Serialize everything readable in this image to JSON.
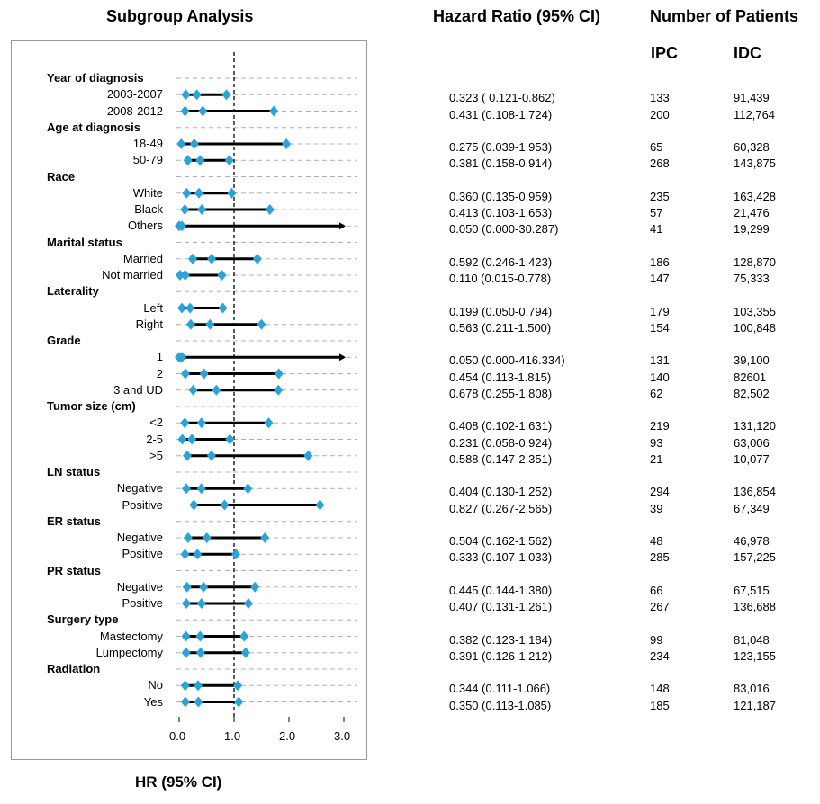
{
  "headers": {
    "subgroup": "Subgroup Analysis",
    "hazard_ratio": "Hazard Ratio (95% CI)",
    "number_of_patients": "Number of Patients",
    "ipc": "IPC",
    "idc": "IDC"
  },
  "chart_data": {
    "type": "forest",
    "xlabel": "HR (95% CI)",
    "xlim": [
      0,
      3
    ],
    "xticks": [
      "0.0",
      "1.0",
      "2.0",
      "3.0"
    ],
    "reference_line": 1.0,
    "grid": "dashed horizontal",
    "rows": [
      {
        "kind": "section",
        "label": "Year of diagnosis"
      },
      {
        "kind": "item",
        "label": "2003-2007",
        "hr": 0.323,
        "lo": 0.121,
        "hi": 0.862,
        "hr_text": "0.323 ( 0.121-0.862)",
        "ipc": "133",
        "idc": "91,439"
      },
      {
        "kind": "item",
        "label": "2008-2012",
        "hr": 0.431,
        "lo": 0.108,
        "hi": 1.724,
        "hr_text": "0.431 (0.108-1.724)",
        "ipc": "200",
        "idc": "112,764"
      },
      {
        "kind": "section",
        "label": "Age at diagnosis"
      },
      {
        "kind": "item",
        "label": "18-49",
        "hr": 0.275,
        "lo": 0.039,
        "hi": 1.953,
        "hr_text": "0.275 (0.039-1.953)",
        "ipc": "65",
        "idc": "60,328"
      },
      {
        "kind": "item",
        "label": "50-79",
        "hr": 0.381,
        "lo": 0.158,
        "hi": 0.914,
        "hr_text": "0.381 (0.158-0.914)",
        "ipc": "268",
        "idc": "143,875"
      },
      {
        "kind": "section",
        "label": "Race"
      },
      {
        "kind": "item",
        "label": "White",
        "hr": 0.36,
        "lo": 0.135,
        "hi": 0.959,
        "hr_text": "0.360 (0.135-0.959)",
        "ipc": "235",
        "idc": "163,428"
      },
      {
        "kind": "item",
        "label": "Black",
        "hr": 0.413,
        "lo": 0.103,
        "hi": 1.653,
        "hr_text": "0.413 (0.103-1.653)",
        "ipc": "57",
        "idc": "21,476"
      },
      {
        "kind": "item",
        "label": "Others",
        "hr": 0.05,
        "lo": 0.0,
        "hi": 30.287,
        "hr_text": "0.050 (0.000-30.287)",
        "ipc": "41",
        "idc": "19,299"
      },
      {
        "kind": "section",
        "label": "Marital status"
      },
      {
        "kind": "item",
        "label": "Married",
        "hr": 0.592,
        "lo": 0.246,
        "hi": 1.423,
        "hr_text": "0.592 (0.246-1.423)",
        "ipc": "186",
        "idc": "128,870"
      },
      {
        "kind": "item",
        "label": "Not married",
        "hr": 0.11,
        "lo": 0.015,
        "hi": 0.778,
        "hr_text": "0.110 (0.015-0.778)",
        "ipc": "147",
        "idc": "75,333"
      },
      {
        "kind": "section",
        "label": "Laterality"
      },
      {
        "kind": "item",
        "label": "Left",
        "hr": 0.199,
        "lo": 0.05,
        "hi": 0.794,
        "hr_text": "0.199 (0.050-0.794)",
        "ipc": "179",
        "idc": "103,355"
      },
      {
        "kind": "item",
        "label": "Right",
        "hr": 0.563,
        "lo": 0.211,
        "hi": 1.5,
        "hr_text": "0.563 (0.211-1.500)",
        "ipc": "154",
        "idc": "100,848"
      },
      {
        "kind": "section",
        "label": "Grade"
      },
      {
        "kind": "item",
        "label": "1",
        "hr": 0.05,
        "lo": 0.0,
        "hi": 416.334,
        "hr_text": "0.050 (0.000-416.334)",
        "ipc": "131",
        "idc": "39,100"
      },
      {
        "kind": "item",
        "label": "2",
        "hr": 0.454,
        "lo": 0.113,
        "hi": 1.815,
        "hr_text": "0.454 (0.113-1.815)",
        "ipc": "140",
        "idc": "82601"
      },
      {
        "kind": "item",
        "label": "3 and UD",
        "hr": 0.678,
        "lo": 0.255,
        "hi": 1.808,
        "hr_text": "0.678 (0.255-1.808)",
        "ipc": "62",
        "idc": "82,502"
      },
      {
        "kind": "section",
        "label": "Tumor size (cm)"
      },
      {
        "kind": "item",
        "label": "<2",
        "hr": 0.408,
        "lo": 0.102,
        "hi": 1.631,
        "hr_text": "0.408 (0.102-1.631)",
        "ipc": "219",
        "idc": "131,120"
      },
      {
        "kind": "item",
        "label": "2-5",
        "hr": 0.231,
        "lo": 0.058,
        "hi": 0.924,
        "hr_text": "0.231 (0.058-0.924)",
        "ipc": "93",
        "idc": "63,006"
      },
      {
        "kind": "item",
        "label": ">5",
        "hr": 0.588,
        "lo": 0.147,
        "hi": 2.351,
        "hr_text": "0.588 (0.147-2.351)",
        "ipc": "21",
        "idc": "10,077"
      },
      {
        "kind": "section",
        "label": "LN status"
      },
      {
        "kind": "item",
        "label": "Negative",
        "hr": 0.404,
        "lo": 0.13,
        "hi": 1.252,
        "hr_text": "0.404 (0.130-1.252)",
        "ipc": "294",
        "idc": "136,854"
      },
      {
        "kind": "item",
        "label": "Positive",
        "hr": 0.827,
        "lo": 0.267,
        "hi": 2.565,
        "hr_text": "0.827 (0.267-2.565)",
        "ipc": "39",
        "idc": "67,349"
      },
      {
        "kind": "section",
        "label": "ER status"
      },
      {
        "kind": "item",
        "label": "Negative",
        "hr": 0.504,
        "lo": 0.162,
        "hi": 1.562,
        "hr_text": "0.504 (0.162-1.562)",
        "ipc": "48",
        "idc": "46,978"
      },
      {
        "kind": "item",
        "label": "Positive",
        "hr": 0.333,
        "lo": 0.107,
        "hi": 1.033,
        "hr_text": "0.333 (0.107-1.033)",
        "ipc": "285",
        "idc": "157,225"
      },
      {
        "kind": "section",
        "label": "PR status"
      },
      {
        "kind": "item",
        "label": "Negative",
        "hr": 0.445,
        "lo": 0.144,
        "hi": 1.38,
        "hr_text": "0.445 (0.144-1.380)",
        "ipc": "66",
        "idc": "67,515"
      },
      {
        "kind": "item",
        "label": "Positive",
        "hr": 0.407,
        "lo": 0.131,
        "hi": 1.261,
        "hr_text": "0.407 (0.131-1.261)",
        "ipc": "267",
        "idc": "136,688"
      },
      {
        "kind": "section",
        "label": "Surgery type"
      },
      {
        "kind": "item",
        "label": "Mastectomy",
        "hr": 0.382,
        "lo": 0.123,
        "hi": 1.184,
        "hr_text": "0.382 (0.123-1.184)",
        "ipc": "99",
        "idc": "81,048"
      },
      {
        "kind": "item",
        "label": "Lumpectomy",
        "hr": 0.391,
        "lo": 0.126,
        "hi": 1.212,
        "hr_text": "0.391 (0.126-1.212)",
        "ipc": "234",
        "idc": "123,155"
      },
      {
        "kind": "section",
        "label": "Radiation"
      },
      {
        "kind": "item",
        "label": "No",
        "hr": 0.344,
        "lo": 0.111,
        "hi": 1.066,
        "hr_text": "0.344 (0.111-1.066)",
        "ipc": "148",
        "idc": "83,016"
      },
      {
        "kind": "item",
        "label": "Yes",
        "hr": 0.35,
        "lo": 0.113,
        "hi": 1.085,
        "hr_text": "0.350 (0.113-1.085)",
        "ipc": "185",
        "idc": "121,187"
      }
    ]
  },
  "colors": {
    "marker": "#29a3d9",
    "line": "#000000",
    "grid": "#b0b0b0",
    "ref_line": "#000000"
  }
}
